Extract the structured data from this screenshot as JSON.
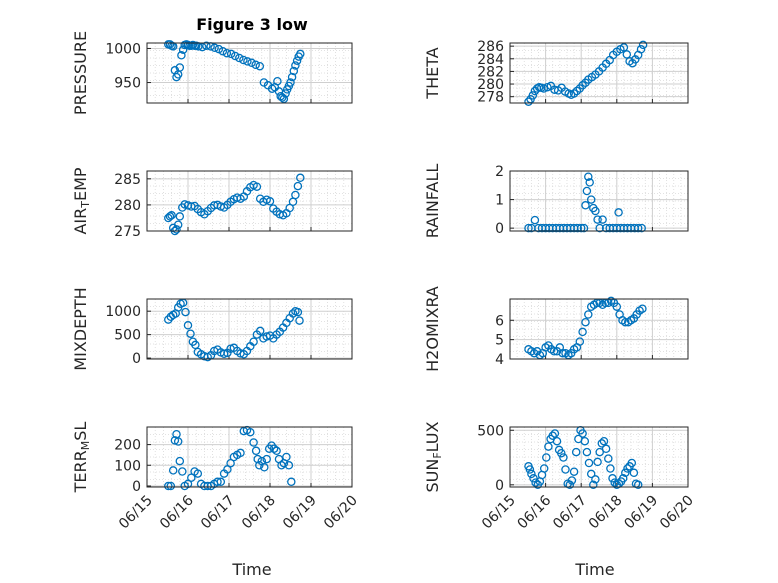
{
  "figure": {
    "title": "Figure 3 low",
    "xlabel_left": "Time",
    "xlabel_right": "Time",
    "marker_color": "#0072BD",
    "grid": true,
    "grid_minor": true
  },
  "chart_data": [
    {
      "type": "scatter",
      "ylabel": "PRESSURE",
      "ylabel_parts": [
        {
          "t": "PRESSURE"
        }
      ],
      "xlim": [
        0,
        5
      ],
      "ylim": [
        920,
        1008
      ],
      "yticks": [
        950,
        1000
      ],
      "ytick_labels": [
        "950",
        "1000"
      ],
      "xticks": [],
      "xtick_labels": [],
      "x": [
        0.52,
        0.56,
        0.6,
        0.64,
        0.68,
        0.72,
        0.76,
        0.8,
        0.84,
        0.88,
        0.92,
        0.96,
        1.0,
        1.04,
        1.08,
        1.12,
        1.16,
        1.2,
        1.25,
        1.35,
        1.45,
        1.55,
        1.65,
        1.75,
        1.85,
        1.95,
        2.05,
        2.15,
        2.25,
        2.35,
        2.45,
        2.55,
        2.65,
        2.75,
        2.85,
        2.95,
        3.05,
        3.12,
        3.18,
        3.22,
        3.26,
        3.3,
        3.34,
        3.38,
        3.42,
        3.46,
        3.5,
        3.54,
        3.58,
        3.62,
        3.66,
        3.7,
        3.74
      ],
      "y": [
        1006,
        1006,
        1004,
        1003,
        968,
        958,
        962,
        972,
        990,
        998,
        1005,
        1006,
        1005,
        1004,
        1004,
        1005,
        1004,
        1004,
        1003,
        1002,
        1004,
        1003,
        1001,
        999,
        996,
        993,
        992,
        989,
        986,
        983,
        981,
        979,
        976,
        974,
        950,
        946,
        941,
        943,
        952,
        937,
        930,
        928,
        926,
        934,
        940,
        945,
        950,
        958,
        967,
        975,
        982,
        988,
        992
      ]
    },
    {
      "type": "scatter",
      "ylabel": "THETA",
      "ylabel_parts": [
        {
          "t": "THETA"
        }
      ],
      "xlim": [
        0,
        5
      ],
      "ylim": [
        277,
        286.5
      ],
      "yticks": [
        278,
        280,
        282,
        284,
        286
      ],
      "ytick_labels": [
        "278",
        "280",
        "282",
        "284",
        "286"
      ],
      "xticks": [],
      "xtick_labels": [],
      "x": [
        0.52,
        0.58,
        0.64,
        0.7,
        0.76,
        0.82,
        0.88,
        0.95,
        1.05,
        1.15,
        1.25,
        1.35,
        1.45,
        1.55,
        1.65,
        1.72,
        1.8,
        1.88,
        1.96,
        2.04,
        2.12,
        2.2,
        2.3,
        2.4,
        2.5,
        2.6,
        2.7,
        2.8,
        2.9,
        3.0,
        3.1,
        3.2,
        3.28,
        3.36,
        3.44,
        3.52,
        3.6,
        3.68,
        3.74
      ],
      "y": [
        277.2,
        277.6,
        278.2,
        278.9,
        279.3,
        279.5,
        279.4,
        279.3,
        279.5,
        279.7,
        279.1,
        279.0,
        279.4,
        278.8,
        278.5,
        278.3,
        278.5,
        278.9,
        279.3,
        279.8,
        280.2,
        280.7,
        281.1,
        281.5,
        282.0,
        282.6,
        283.2,
        283.8,
        284.6,
        285.1,
        285.5,
        285.8,
        284.7,
        283.6,
        283.3,
        283.9,
        284.6,
        285.5,
        286.2
      ]
    },
    {
      "type": "scatter",
      "ylabel": "AIR_TEMP",
      "ylabel_parts": [
        {
          "t": "AIR"
        },
        {
          "t": "T",
          "sub": true
        },
        {
          "t": "EMP"
        }
      ],
      "xlim": [
        0,
        5
      ],
      "ylim": [
        275,
        286.5
      ],
      "yticks": [
        275,
        280,
        285
      ],
      "ytick_labels": [
        "275",
        "280",
        "285"
      ],
      "xticks": [],
      "xtick_labels": [],
      "x": [
        0.52,
        0.56,
        0.6,
        0.64,
        0.68,
        0.72,
        0.76,
        0.8,
        0.86,
        0.92,
        1.0,
        1.08,
        1.16,
        1.24,
        1.32,
        1.4,
        1.48,
        1.56,
        1.64,
        1.72,
        1.8,
        1.88,
        1.96,
        2.04,
        2.12,
        2.2,
        2.28,
        2.36,
        2.44,
        2.52,
        2.6,
        2.68,
        2.76,
        2.84,
        2.92,
        3.0,
        3.08,
        3.16,
        3.24,
        3.32,
        3.4,
        3.48,
        3.56,
        3.62,
        3.68,
        3.74
      ],
      "y": [
        277.5,
        277.8,
        278.0,
        275.6,
        275.0,
        275.3,
        276.2,
        277.8,
        279.5,
        280.1,
        279.9,
        279.7,
        279.8,
        279.2,
        278.6,
        278.2,
        278.8,
        279.4,
        279.9,
        280.0,
        279.7,
        279.5,
        280.0,
        280.6,
        281.1,
        281.4,
        281.2,
        281.6,
        282.6,
        283.4,
        283.8,
        283.5,
        281.2,
        280.6,
        281.0,
        280.7,
        279.3,
        278.7,
        278.2,
        278.0,
        278.4,
        279.4,
        280.6,
        281.9,
        283.6,
        285.2
      ]
    },
    {
      "type": "scatter",
      "ylabel": "RAINFALL",
      "ylabel_parts": [
        {
          "t": "RAINFALL"
        }
      ],
      "xlim": [
        0,
        5
      ],
      "ylim": [
        -0.1,
        2
      ],
      "yticks": [
        0,
        1,
        2
      ],
      "ytick_labels": [
        "0",
        "1",
        "2"
      ],
      "xticks": [],
      "xtick_labels": [],
      "x": [
        0.52,
        0.6,
        0.7,
        0.8,
        0.9,
        1.0,
        1.1,
        1.2,
        1.3,
        1.4,
        1.5,
        1.6,
        1.7,
        1.8,
        1.9,
        2.0,
        2.08,
        2.12,
        2.16,
        2.2,
        2.24,
        2.28,
        2.34,
        2.4,
        2.46,
        2.52,
        2.6,
        2.7,
        2.8,
        2.9,
        3.0,
        3.05,
        3.1,
        3.2,
        3.3,
        3.4,
        3.5,
        3.6,
        3.7
      ],
      "y": [
        0,
        0,
        0.28,
        0,
        0,
        0,
        0,
        0,
        0,
        0,
        0,
        0,
        0,
        0,
        0,
        0,
        0,
        0.8,
        1.3,
        1.8,
        1.6,
        1.0,
        0.7,
        0.6,
        0.3,
        0,
        0.3,
        0,
        0,
        0,
        0,
        0.55,
        0,
        0,
        0,
        0,
        0,
        0,
        0
      ]
    },
    {
      "type": "scatter",
      "ylabel": "MIXDEPTH",
      "ylabel_parts": [
        {
          "t": "MIXDEPTH"
        }
      ],
      "xlim": [
        0,
        5
      ],
      "ylim": [
        -20,
        1260
      ],
      "yticks": [
        0,
        500,
        1000
      ],
      "ytick_labels": [
        "0",
        "500",
        "1000"
      ],
      "xticks": [],
      "xtick_labels": [],
      "x": [
        0.52,
        0.58,
        0.64,
        0.7,
        0.76,
        0.82,
        0.88,
        0.94,
        1.0,
        1.06,
        1.12,
        1.18,
        1.24,
        1.32,
        1.4,
        1.48,
        1.56,
        1.64,
        1.72,
        1.8,
        1.88,
        1.96,
        2.04,
        2.12,
        2.2,
        2.28,
        2.36,
        2.44,
        2.52,
        2.6,
        2.68,
        2.76,
        2.84,
        2.92,
        3.0,
        3.08,
        3.16,
        3.24,
        3.32,
        3.4,
        3.48,
        3.56,
        3.62,
        3.68,
        3.72
      ],
      "y": [
        820,
        880,
        920,
        950,
        1080,
        1160,
        1180,
        980,
        700,
        520,
        350,
        280,
        130,
        80,
        40,
        20,
        60,
        150,
        180,
        120,
        90,
        110,
        200,
        220,
        150,
        100,
        80,
        150,
        250,
        350,
        500,
        580,
        420,
        460,
        480,
        420,
        500,
        560,
        650,
        750,
        850,
        950,
        1000,
        980,
        800
      ]
    },
    {
      "type": "scatter",
      "ylabel": "H2OMIXRA",
      "ylabel_parts": [
        {
          "t": "H2OMIXRA"
        }
      ],
      "xlim": [
        0,
        5
      ],
      "ylim": [
        4,
        7.1
      ],
      "yticks": [
        4,
        5,
        6
      ],
      "ytick_labels": [
        "4",
        "5",
        "6"
      ],
      "xticks": [],
      "xtick_labels": [],
      "x": [
        0.52,
        0.6,
        0.68,
        0.76,
        0.84,
        0.92,
        1.0,
        1.08,
        1.16,
        1.24,
        1.32,
        1.4,
        1.48,
        1.56,
        1.64,
        1.72,
        1.8,
        1.88,
        1.96,
        2.04,
        2.12,
        2.2,
        2.28,
        2.36,
        2.44,
        2.52,
        2.6,
        2.68,
        2.76,
        2.84,
        2.92,
        3.0,
        3.08,
        3.16,
        3.24,
        3.32,
        3.4,
        3.48,
        3.56,
        3.64,
        3.72
      ],
      "y": [
        4.5,
        4.4,
        4.3,
        4.4,
        4.2,
        4.3,
        4.6,
        4.7,
        4.5,
        4.4,
        4.4,
        4.6,
        4.3,
        4.3,
        4.2,
        4.3,
        4.5,
        4.6,
        4.9,
        5.4,
        5.9,
        6.3,
        6.7,
        6.8,
        6.9,
        6.9,
        6.8,
        6.9,
        6.9,
        7.0,
        6.9,
        6.7,
        6.3,
        6.0,
        5.9,
        5.9,
        6.0,
        6.1,
        6.3,
        6.5,
        6.6
      ]
    },
    {
      "type": "scatter",
      "ylabel": "TERR_MSL",
      "ylabel_parts": [
        {
          "t": "TERR"
        },
        {
          "t": "M",
          "sub": true
        },
        {
          "t": "SL"
        }
      ],
      "xlim": [
        0,
        5
      ],
      "ylim": [
        -5,
        285
      ],
      "yticks": [
        0,
        100,
        200
      ],
      "ytick_labels": [
        "0",
        "100",
        "200"
      ],
      "xticks": [],
      "xtick_labels": [],
      "x": [
        0.52,
        0.58,
        0.64,
        0.68,
        0.72,
        0.76,
        0.8,
        0.86,
        0.92,
        1.0,
        1.08,
        1.16,
        1.24,
        1.32,
        1.4,
        1.48,
        1.56,
        1.64,
        1.72,
        1.8,
        1.88,
        1.96,
        2.04,
        2.12,
        2.2,
        2.28,
        2.36,
        2.44,
        2.52,
        2.6,
        2.66,
        2.7,
        2.74,
        2.8,
        2.86,
        2.92,
        2.98,
        3.04,
        3.1,
        3.16,
        3.22,
        3.28,
        3.34,
        3.4,
        3.46,
        3.52
      ],
      "y": [
        0,
        0,
        75,
        220,
        250,
        215,
        120,
        70,
        0,
        10,
        40,
        70,
        60,
        10,
        0,
        0,
        0,
        10,
        20,
        20,
        60,
        80,
        110,
        140,
        150,
        160,
        265,
        270,
        260,
        210,
        170,
        130,
        100,
        120,
        90,
        130,
        180,
        195,
        180,
        170,
        130,
        100,
        110,
        140,
        100,
        20
      ]
    },
    {
      "type": "scatter",
      "ylabel": "SUN_FLUX",
      "ylabel_parts": [
        {
          "t": "SUN"
        },
        {
          "t": "F",
          "sub": true
        },
        {
          "t": "LUX"
        }
      ],
      "xlim": [
        0,
        5
      ],
      "ylim": [
        -20,
        530
      ],
      "yticks": [
        0,
        500
      ],
      "ytick_labels": [
        "0",
        "500"
      ],
      "xticks": [],
      "xtick_labels": [],
      "x": [
        0.52,
        0.56,
        0.6,
        0.66,
        0.72,
        0.78,
        0.84,
        0.9,
        0.96,
        1.02,
        1.08,
        1.14,
        1.2,
        1.26,
        1.32,
        1.38,
        1.44,
        1.5,
        1.56,
        1.62,
        1.68,
        1.74,
        1.8,
        1.86,
        1.92,
        1.98,
        2.04,
        2.1,
        2.16,
        2.22,
        2.28,
        2.34,
        2.4,
        2.46,
        2.52,
        2.58,
        2.64,
        2.7,
        2.76,
        2.82,
        2.88,
        2.94,
        3.0,
        3.06,
        3.12,
        3.18,
        3.24,
        3.3,
        3.36,
        3.42,
        3.48,
        3.54,
        3.6
      ],
      "y": [
        170,
        140,
        100,
        60,
        20,
        0,
        30,
        90,
        150,
        250,
        350,
        420,
        450,
        470,
        400,
        320,
        290,
        250,
        140,
        10,
        0,
        40,
        120,
        300,
        420,
        500,
        470,
        400,
        300,
        200,
        100,
        0,
        50,
        210,
        300,
        380,
        400,
        330,
        240,
        150,
        60,
        20,
        0,
        10,
        30,
        60,
        110,
        150,
        170,
        200,
        110,
        10,
        0
      ],
      "y_extra_note": ""
    }
  ],
  "axes_bottom": {
    "xtick_labels": [
      "06/15",
      "06/16",
      "06/17",
      "06/18",
      "06/19",
      "06/20"
    ]
  }
}
